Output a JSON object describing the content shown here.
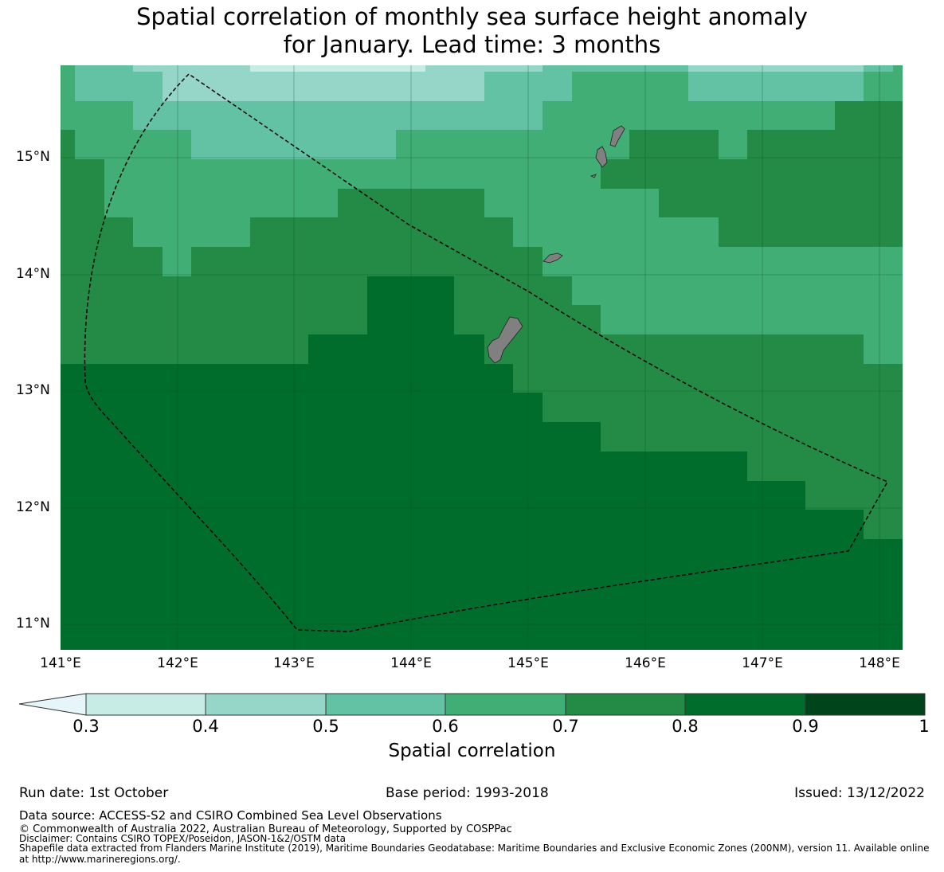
{
  "title": {
    "line1": "Spatial correlation of monthly sea surface height anomaly",
    "line2": "for January. Lead time: 3 months"
  },
  "axes": {
    "lat_ticks": [
      "15°N",
      "14°N",
      "13°N",
      "12°N",
      "11°N"
    ],
    "lon_ticks": [
      "141°E",
      "142°E",
      "143°E",
      "144°E",
      "145°E",
      "146°E",
      "147°E",
      "148°E"
    ]
  },
  "colorbar": {
    "label": "Spatial correlation",
    "ticks": [
      "0.3",
      "0.4",
      "0.5",
      "0.6",
      "0.7",
      "0.8",
      "0.9",
      "1"
    ],
    "colors": {
      "under": "#e5f5f9",
      "c03": "#c7ebe5",
      "c04": "#96d6c8",
      "c05": "#62c2a3",
      "c06": "#41ae76",
      "c07": "#238b45",
      "c08": "#006d2c",
      "c09": "#00441b"
    }
  },
  "footer": {
    "run_date": "Run date: 1st October",
    "base_period": "Base period: 1993-2018",
    "issued": "Issued: 13/12/2022",
    "data_source": "Data source: ACCESS-S2 and CSIRO Combined Sea Level Observations",
    "copyright": "© Commonwealth of Australia 2022, Australian Bureau of Meteorology, Supported by COSPPac",
    "disclaimer": "Disclaimer: Contains CSIRO TOPEX/Poseidon, JASON-1&2/OSTM data",
    "shapefile_1": "Shapefile data extracted from Flanders Marine Institute (2019), Maritime Boundaries Geodatabase: Maritime Boundaries and Exclusive Economic Zones (200NM), version 11. Available online",
    "shapefile_2": "at http://www.marineregions.org/."
  }
}
